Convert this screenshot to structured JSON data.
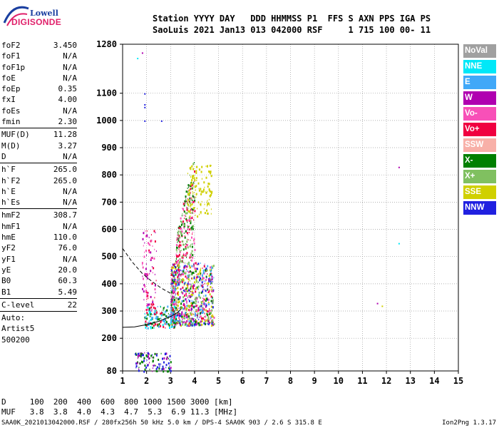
{
  "logo": {
    "line1": "Lowell",
    "line2": "DIGISONDE"
  },
  "header": {
    "line1": "Station YYYY DAY   DDD HHMMSS P1  FFS S AXN PPS IGA PS",
    "line2": "SaoLuis 2021 Jan13 013 042000 RSF     1 715 100 00- 11"
  },
  "params": {
    "group1": [
      {
        "k": "foF2",
        "v": "3.450"
      },
      {
        "k": "foF1",
        "v": "N/A"
      },
      {
        "k": "foF1p",
        "v": "N/A"
      },
      {
        "k": "foE",
        "v": "N/A"
      },
      {
        "k": "foEp",
        "v": "0.35"
      },
      {
        "k": "fxI",
        "v": "4.00"
      },
      {
        "k": "foEs",
        "v": "N/A"
      },
      {
        "k": "fmin",
        "v": "2.30"
      }
    ],
    "group2": [
      {
        "k": "MUF(D)",
        "v": "11.28"
      },
      {
        "k": "M(D)",
        "v": "3.27"
      },
      {
        "k": "D",
        "v": "N/A"
      }
    ],
    "group3": [
      {
        "k": "h`F",
        "v": "265.0"
      },
      {
        "k": "h`F2",
        "v": "265.0"
      },
      {
        "k": "h`E",
        "v": "N/A"
      },
      {
        "k": "h`Es",
        "v": "N/A"
      }
    ],
    "group4": [
      {
        "k": "hmF2",
        "v": "308.7"
      },
      {
        "k": "hmF1",
        "v": "N/A"
      },
      {
        "k": "hmE",
        "v": "110.0"
      },
      {
        "k": "yF2",
        "v": "76.0"
      },
      {
        "k": "yF1",
        "v": "N/A"
      },
      {
        "k": "yE",
        "v": "20.0"
      },
      {
        "k": "B0",
        "v": "60.3"
      },
      {
        "k": "B1",
        "v": "5.49"
      }
    ],
    "group5": [
      {
        "k": "C-level",
        "v": "22"
      }
    ],
    "extra": [
      "Auto:",
      "Artist5",
      "500200"
    ]
  },
  "legend": [
    {
      "label": "NoVal",
      "color": "#a0a0a0"
    },
    {
      "label": "NNE",
      "color": "#00e8f8"
    },
    {
      "label": "E",
      "color": "#40a8f8"
    },
    {
      "label": "W",
      "color": "#b000b0"
    },
    {
      "label": "Vo-",
      "color": "#f850b8"
    },
    {
      "label": "Vo+",
      "color": "#f00040"
    },
    {
      "label": "SSW",
      "color": "#f8b0a8"
    },
    {
      "label": "X-",
      "color": "#008000"
    },
    {
      "label": "X+",
      "color": "#80c060"
    },
    {
      "label": "SSE",
      "color": "#d0d000"
    },
    {
      "label": "NNW",
      "color": "#2020e0"
    }
  ],
  "footer": {
    "line1": "D     100  200  400  600  800 1000 1500 3000 [km]",
    "line2": "MUF   3.8  3.8  4.0  4.3  4.7  5.3  6.9 11.3 [MHz]",
    "file": "SAA0K_2021013042000.RSF / 280fx256h 50 kHz 5.0 km / DPS-4 SAA0K 903 / 2.6 S 315.8 E",
    "version": "Ion2Png 1.3.17"
  },
  "chart_data": {
    "type": "scatter",
    "x_ticks": [
      1,
      2,
      3,
      4,
      5,
      6,
      7,
      8,
      9,
      10,
      11,
      12,
      13,
      14,
      15
    ],
    "y_ticks": [
      80,
      200,
      300,
      400,
      500,
      600,
      700,
      800,
      900,
      1000,
      1100,
      1280
    ],
    "xlim": [
      1,
      15
    ],
    "ylim": [
      80,
      1280
    ],
    "trace_clusters": [
      {
        "name": "F2 trace main",
        "x": [
          3.0,
          4.8
        ],
        "y": [
          250,
          480
        ],
        "colors": [
          "#f00040",
          "#f850b8",
          "#008000",
          "#b000b0",
          "#d0d000",
          "#40a8f8",
          "#2020e0",
          "#80c060"
        ]
      },
      {
        "name": "F2 low-freq band",
        "x": [
          1.9,
          3.2
        ],
        "y": [
          240,
          320
        ],
        "colors": [
          "#40a8f8",
          "#00e8f8",
          "#f00040",
          "#008000"
        ]
      },
      {
        "name": "multi-hop upper",
        "x": [
          3.2,
          4.0
        ],
        "y": [
          480,
          900
        ],
        "colors": [
          "#008000",
          "#80c060",
          "#f00040",
          "#f850b8"
        ]
      },
      {
        "name": "SSE upper",
        "x": [
          3.7,
          4.7
        ],
        "y": [
          650,
          840
        ],
        "colors": [
          "#d0d000"
        ]
      },
      {
        "name": "low-height band",
        "x": [
          1.5,
          3.0
        ],
        "y": [
          80,
          150
        ],
        "colors": [
          "#2020e0",
          "#b000b0",
          "#008000"
        ]
      },
      {
        "name": "left column",
        "x": [
          1.8,
          2.4
        ],
        "y": [
          300,
          600
        ],
        "colors": [
          "#f850b8",
          "#b000b0",
          "#f00040"
        ]
      }
    ],
    "isolated_points": [
      {
        "x": 1.9,
        "y": 1100,
        "c": "#2020e0"
      },
      {
        "x": 1.9,
        "y": 1060,
        "c": "#2020e0"
      },
      {
        "x": 1.9,
        "y": 1050,
        "c": "#2020e0"
      },
      {
        "x": 1.9,
        "y": 1000,
        "c": "#2020e0"
      },
      {
        "x": 1.8,
        "y": 1250,
        "c": "#b000b0"
      },
      {
        "x": 1.6,
        "y": 1230,
        "c": "#00e8f8"
      },
      {
        "x": 12.5,
        "y": 830,
        "c": "#b000b0"
      },
      {
        "x": 12.5,
        "y": 550,
        "c": "#00e8f8"
      },
      {
        "x": 11.6,
        "y": 330,
        "c": "#b000b0"
      },
      {
        "x": 11.8,
        "y": 320,
        "c": "#d0d000"
      },
      {
        "x": 2.6,
        "y": 1000,
        "c": "#2020e0"
      }
    ],
    "profile_curve": {
      "x": [
        1.0,
        1.5,
        2.0,
        2.5,
        3.0,
        3.3,
        3.45
      ],
      "y": [
        240,
        242,
        250,
        262,
        280,
        295,
        308.7
      ]
    },
    "dashed_curve": {
      "x": [
        1.0,
        1.4,
        1.8,
        2.2,
        2.6,
        3.0
      ],
      "y": [
        530,
        480,
        440,
        410,
        385,
        365
      ]
    }
  }
}
